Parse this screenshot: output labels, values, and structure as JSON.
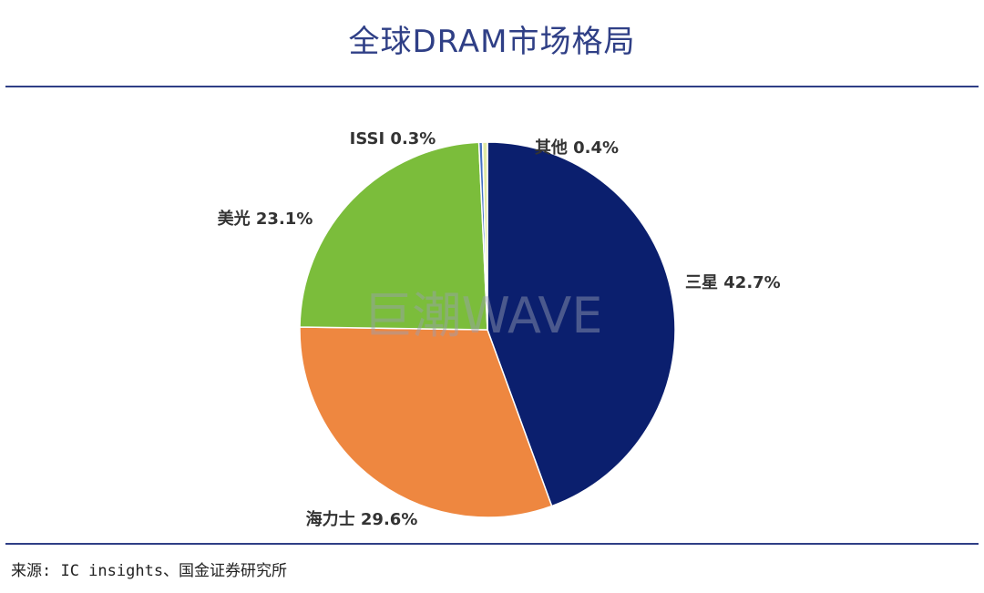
{
  "title": "全球DRAM市场格局",
  "source": "来源: IC insights、国金证券研究所",
  "watermark": "巨潮WAVE",
  "chart_data": {
    "type": "pie",
    "start_angle_deg": 0,
    "direction": "clockwise",
    "slices": [
      {
        "label": "三星",
        "value": 42.7,
        "display": "三星 42.7%",
        "color": "#0b1f6e"
      },
      {
        "label": "海力士",
        "value": 29.6,
        "display": "海力士 29.6%",
        "color": "#ee8740"
      },
      {
        "label": "美光",
        "value": 23.1,
        "display": "美光 23.1%",
        "color": "#7bbd3b"
      },
      {
        "label": "ISSI",
        "value": 0.3,
        "display": "ISSI 0.3%",
        "color": "#4472c4"
      },
      {
        "label": "其他",
        "value": 0.4,
        "display": "其他 0.4%",
        "color": "#e0eaa4"
      }
    ]
  }
}
